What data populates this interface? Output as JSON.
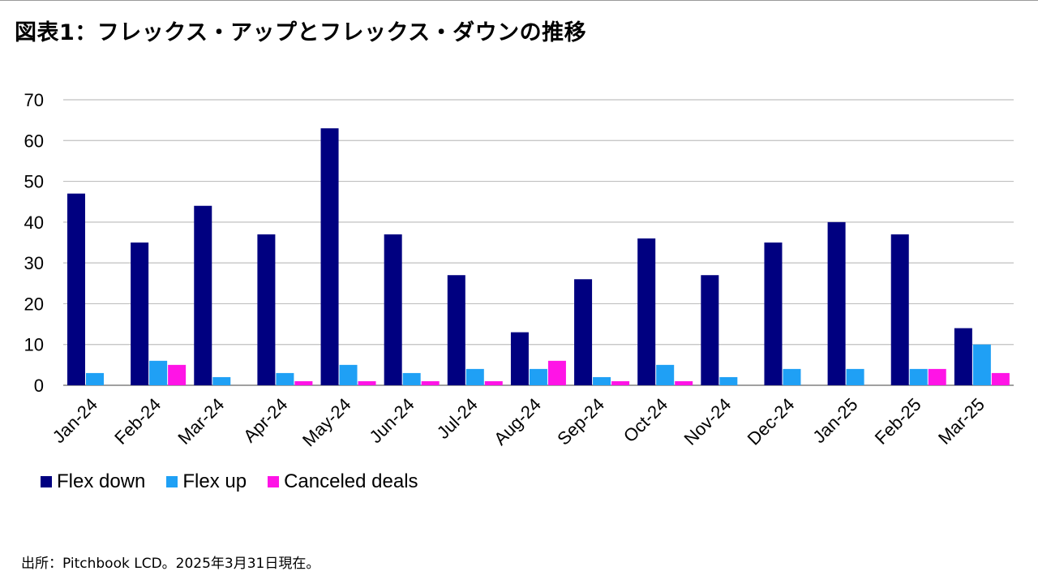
{
  "title": "図表1：フレックス・アップとフレックス・ダウンの推移",
  "source": "出所：Pitchbook LCD。2025年3月31日現在。",
  "chart_data": {
    "type": "bar",
    "categories": [
      "Jan-24",
      "Feb-24",
      "Mar-24",
      "Apr-24",
      "May-24",
      "Jun-24",
      "Jul-24",
      "Aug-24",
      "Sep-24",
      "Oct-24",
      "Nov-24",
      "Dec-24",
      "Jan-25",
      "Feb-25",
      "Mar-25"
    ],
    "series": [
      {
        "name": "Flex down",
        "color": "#000080",
        "values": [
          47,
          35,
          44,
          37,
          63,
          37,
          27,
          13,
          26,
          36,
          27,
          35,
          40,
          37,
          14
        ]
      },
      {
        "name": "Flex up",
        "color": "#1fa0f5",
        "values": [
          3,
          6,
          2,
          3,
          5,
          3,
          4,
          4,
          2,
          5,
          2,
          4,
          4,
          4,
          10
        ]
      },
      {
        "name": "Canceled deals",
        "color": "#ff14e6",
        "values": [
          0,
          5,
          0,
          1,
          1,
          1,
          1,
          6,
          1,
          1,
          0,
          0,
          0,
          4,
          3
        ]
      }
    ],
    "ylim": [
      0,
      70
    ],
    "yticks": [
      0,
      10,
      20,
      30,
      40,
      50,
      60,
      70
    ],
    "xlabel": "",
    "ylabel": "",
    "grid": true,
    "legend": "bottom-left"
  }
}
